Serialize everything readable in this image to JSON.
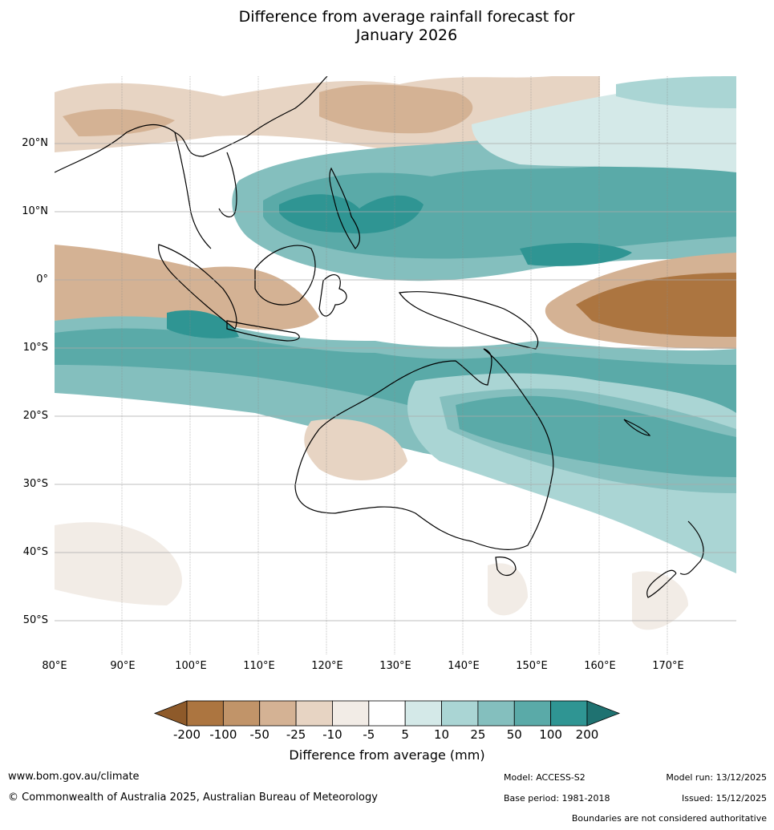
{
  "title_line1": "Difference from average rainfall forecast for",
  "title_line2": "January 2026",
  "lat_labels": [
    "20°N",
    "10°N",
    "0°",
    "10°S",
    "20°S",
    "30°S",
    "40°S",
    "50°S"
  ],
  "lon_labels": [
    "80°E",
    "90°E",
    "100°E",
    "110°E",
    "120°E",
    "130°E",
    "140°E",
    "150°E",
    "160°E",
    "170°E"
  ],
  "colorbar": {
    "ticks": [
      "-200",
      "-100",
      "-50",
      "-25",
      "-10",
      "-5",
      "5",
      "10",
      "25",
      "50",
      "100",
      "200"
    ],
    "colors": [
      "#8e5a2a",
      "#ac7540",
      "#c19469",
      "#d4b294",
      "#e7d4c3",
      "#f2ece6",
      "#ffffff",
      "#d4e9e8",
      "#aad5d4",
      "#84bfbe",
      "#5aaaa8",
      "#2f9593",
      "#1f7271"
    ],
    "label": "Difference from average (mm)"
  },
  "footer": {
    "website": "www.bom.gov.au/climate",
    "copyright": "© Commonwealth of Australia 2025, Australian Bureau of Meteorology",
    "model": "Model: ACCESS-S2",
    "base_period": "Base period: 1981-2018",
    "model_run": "Model run: 13/12/2025",
    "issued": "Issued: 15/12/2025",
    "disclaimer": "Boundaries are not considered authoritative"
  }
}
